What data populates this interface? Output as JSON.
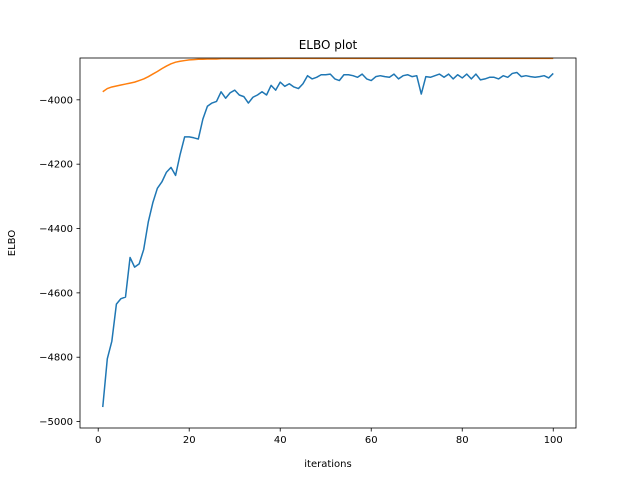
{
  "chart_data": {
    "type": "line",
    "title": "ELBO plot",
    "xlabel": "iterations",
    "ylabel": "ELBO",
    "xlim": [
      -4,
      105
    ],
    "ylim": [
      -5020,
      -3870
    ],
    "xticks": [
      0,
      20,
      40,
      60,
      80,
      100
    ],
    "yticks": [
      -5000,
      -4800,
      -4600,
      -4400,
      -4200,
      -4000
    ],
    "grid": false,
    "legend": "none",
    "series": [
      {
        "color": "#1f77b4",
        "x": [
          1,
          2,
          3,
          4,
          5,
          6,
          7,
          8,
          9,
          10,
          11,
          12,
          13,
          14,
          15,
          16,
          17,
          18,
          19,
          20,
          21,
          22,
          23,
          24,
          25,
          26,
          27,
          28,
          29,
          30,
          31,
          32,
          33,
          34,
          35,
          36,
          37,
          38,
          39,
          40,
          41,
          42,
          43,
          44,
          45,
          46,
          47,
          48,
          49,
          50,
          51,
          52,
          53,
          54,
          55,
          56,
          57,
          58,
          59,
          60,
          61,
          62,
          63,
          64,
          65,
          66,
          67,
          68,
          69,
          70,
          71,
          72,
          73,
          74,
          75,
          76,
          77,
          78,
          79,
          80,
          81,
          82,
          83,
          84,
          85,
          86,
          87,
          88,
          89,
          90,
          91,
          92,
          93,
          94,
          95,
          96,
          97,
          98,
          99,
          100
        ],
        "y": [
          -4955,
          -4805,
          -4750,
          -4635,
          -4618,
          -4613,
          -4490,
          -4520,
          -4510,
          -4465,
          -4380,
          -4320,
          -4275,
          -4255,
          -4225,
          -4210,
          -4235,
          -4170,
          -4115,
          -4115,
          -4118,
          -4122,
          -4060,
          -4020,
          -4010,
          -4005,
          -3975,
          -3995,
          -3978,
          -3970,
          -3985,
          -3990,
          -4010,
          -3992,
          -3985,
          -3975,
          -3985,
          -3955,
          -3970,
          -3945,
          -3958,
          -3950,
          -3960,
          -3965,
          -3950,
          -3925,
          -3935,
          -3930,
          -3922,
          -3922,
          -3920,
          -3935,
          -3940,
          -3922,
          -3922,
          -3925,
          -3930,
          -3920,
          -3935,
          -3940,
          -3928,
          -3925,
          -3928,
          -3930,
          -3920,
          -3935,
          -3925,
          -3922,
          -3928,
          -3925,
          -3982,
          -3928,
          -3930,
          -3925,
          -3920,
          -3930,
          -3920,
          -3935,
          -3922,
          -3932,
          -3920,
          -3935,
          -3920,
          -3938,
          -3935,
          -3930,
          -3930,
          -3935,
          -3925,
          -3930,
          -3918,
          -3915,
          -3928,
          -3925,
          -3928,
          -3930,
          -3928,
          -3925,
          -3932,
          -3918
        ]
      },
      {
        "color": "#ff7f0e",
        "x": [
          1,
          2,
          3,
          4,
          5,
          6,
          7,
          8,
          9,
          10,
          11,
          12,
          13,
          14,
          15,
          16,
          17,
          18,
          19,
          20,
          21,
          22,
          23,
          24,
          25,
          26,
          27,
          28,
          29,
          30,
          35,
          40,
          50,
          60,
          70,
          80,
          90,
          100
        ],
        "y": [
          -3975,
          -3965,
          -3960,
          -3957,
          -3954,
          -3951,
          -3948,
          -3945,
          -3940,
          -3935,
          -3928,
          -3920,
          -3912,
          -3903,
          -3895,
          -3888,
          -3883,
          -3880,
          -3878,
          -3876,
          -3875,
          -3874,
          -3874,
          -3873,
          -3873,
          -3873,
          -3872,
          -3872,
          -3872,
          -3872,
          -3872,
          -3871,
          -3871,
          -3871,
          -3871,
          -3871,
          -3871,
          -3871
        ]
      }
    ]
  }
}
